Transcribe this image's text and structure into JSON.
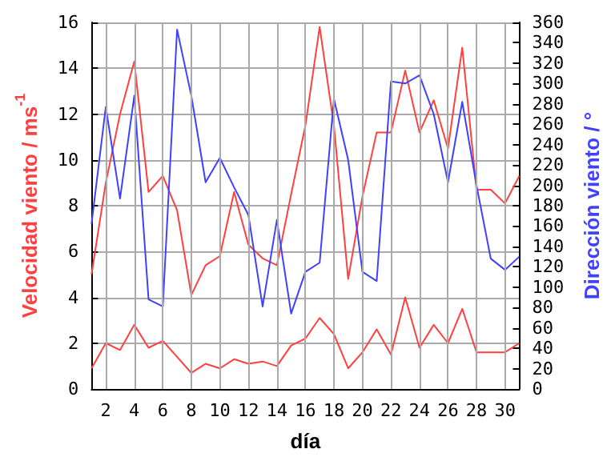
{
  "chart_data": {
    "type": "line",
    "xlabel": "día",
    "ylabel": "Velocidad viento / ms$^{-1}$",
    "y2label": "Dirección viento / °",
    "x": [
      1,
      2,
      3,
      4,
      5,
      6,
      7,
      8,
      9,
      10,
      11,
      12,
      13,
      14,
      15,
      16,
      17,
      18,
      19,
      20,
      21,
      22,
      23,
      24,
      25,
      26,
      27,
      28,
      29,
      30,
      31
    ],
    "series": [
      {
        "color": "#ff4040",
        "values": [
          5.0,
          9.0,
          12.0,
          14.3,
          8.6,
          9.3,
          7.8,
          4.1,
          5.4,
          5.8,
          8.6,
          6.3,
          5.7,
          5.4,
          8.5,
          11.5,
          15.8,
          11.5,
          4.8,
          8.4,
          11.2,
          11.2,
          13.9,
          11.2,
          12.6,
          10.5,
          14.9,
          8.7,
          8.7,
          8.1,
          9.3
        ]
      },
      {
        "color": "#ff4040",
        "values": [
          0.9,
          2.0,
          1.7,
          2.8,
          1.8,
          2.1,
          1.4,
          0.7,
          1.1,
          0.9,
          1.3,
          1.1,
          1.2,
          1.0,
          1.9,
          2.2,
          3.1,
          2.4,
          0.9,
          1.6,
          2.6,
          1.5,
          4.0,
          1.8,
          2.8,
          2.0,
          3.5,
          1.6,
          1.6,
          1.6,
          2.0
        ]
      },
      {
        "color": "#4040ff",
        "axis": "y2",
        "values": [
          162,
          277,
          187,
          288,
          88,
          81,
          353,
          288,
          203,
          227,
          198,
          171,
          81,
          166,
          74,
          115,
          124,
          285,
          225,
          115,
          106,
          302,
          300,
          308,
          270,
          203,
          282,
          200,
          128,
          117,
          130
        ]
      }
    ],
    "xlim": [
      1,
      31
    ],
    "xticks": [
      2,
      4,
      6,
      8,
      10,
      12,
      14,
      16,
      18,
      20,
      22,
      24,
      26,
      28,
      30
    ],
    "ylim": [
      0,
      16
    ],
    "yticks": [
      0,
      2,
      4,
      6,
      8,
      10,
      12,
      14,
      16
    ],
    "y2lim": [
      0,
      360
    ],
    "y2ticks": [
      0,
      20,
      40,
      60,
      80,
      100,
      120,
      140,
      160,
      180,
      200,
      220,
      240,
      260,
      280,
      300,
      320,
      340,
      360
    ],
    "grid": true,
    "marker": "none",
    "line_style": "solid"
  }
}
